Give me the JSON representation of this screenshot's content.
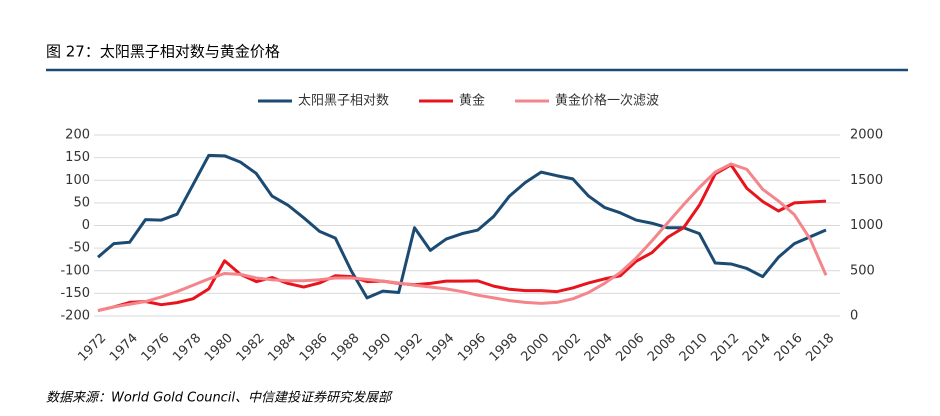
{
  "chart_data": {
    "type": "line",
    "title": "图 27：太阳黑子相对数与黄金价格",
    "source": "数据来源：World Gold Council、中信建投证券研究发展部",
    "x": [
      1972,
      1973,
      1974,
      1975,
      1976,
      1977,
      1978,
      1979,
      1980,
      1981,
      1982,
      1983,
      1984,
      1985,
      1986,
      1987,
      1988,
      1989,
      1990,
      1991,
      1992,
      1993,
      1994,
      1995,
      1996,
      1997,
      1998,
      1999,
      2000,
      2001,
      2002,
      2003,
      2004,
      2005,
      2006,
      2007,
      2008,
      2009,
      2010,
      2011,
      2012,
      2013,
      2014,
      2015,
      2016,
      2017,
      2018
    ],
    "series": [
      {
        "name": "太阳黑子相对数",
        "color": "#1b4a72",
        "values": [
          -70,
          -40,
          -37,
          13,
          12,
          25,
          90,
          155,
          154,
          140,
          115,
          65,
          45,
          17,
          -13,
          -28,
          -100,
          -160,
          -145,
          -148,
          -5,
          -55,
          -30,
          -18,
          -10,
          20,
          65,
          95,
          118,
          110,
          103,
          65,
          40,
          28,
          12,
          5,
          -5,
          -5,
          -18,
          -83,
          -85,
          -95,
          -113,
          -70,
          -40,
          -25,
          -10
        ]
      },
      {
        "name": "黄金",
        "color": "#e8141d",
        "axis": "y2",
        "values": [
          60,
          100,
          150,
          160,
          125,
          148,
          190,
          300,
          610,
          460,
          380,
          425,
          360,
          320,
          365,
          445,
          435,
          380,
          385,
          360,
          345,
          360,
          385,
          385,
          388,
          330,
          295,
          280,
          280,
          270,
          310,
          365,
          410,
          445,
          605,
          700,
          870,
          975,
          1225,
          1570,
          1670,
          1410,
          1265,
          1160,
          1250,
          1260,
          1270
        ]
      },
      {
        "name": "黄金价格一次滤波",
        "color": "#f4868b",
        "axis": "y2",
        "values": [
          60,
          100,
          130,
          160,
          210,
          270,
          340,
          410,
          470,
          460,
          420,
          400,
          390,
          390,
          400,
          420,
          420,
          405,
          385,
          365,
          340,
          320,
          300,
          270,
          230,
          200,
          170,
          150,
          140,
          150,
          190,
          260,
          360,
          480,
          640,
          830,
          1030,
          1230,
          1420,
          1590,
          1680,
          1620,
          1400,
          1270,
          1120,
          850,
          450
        ]
      }
    ],
    "xlim": [
      1972,
      2018
    ],
    "xticks": [
      1972,
      1974,
      1976,
      1978,
      1980,
      1982,
      1984,
      1986,
      1988,
      1990,
      1992,
      1994,
      1996,
      1998,
      2000,
      2002,
      2004,
      2006,
      2008,
      2010,
      2012,
      2014,
      2016,
      2018
    ],
    "ylim": [
      -200,
      200
    ],
    "yticks": [
      -200,
      -150,
      -100,
      -50,
      0,
      50,
      100,
      150,
      200
    ],
    "y2lim": [
      0,
      2000
    ],
    "y2ticks": [
      0,
      500,
      1000,
      1500,
      2000
    ],
    "grid": true,
    "legend": "top"
  }
}
